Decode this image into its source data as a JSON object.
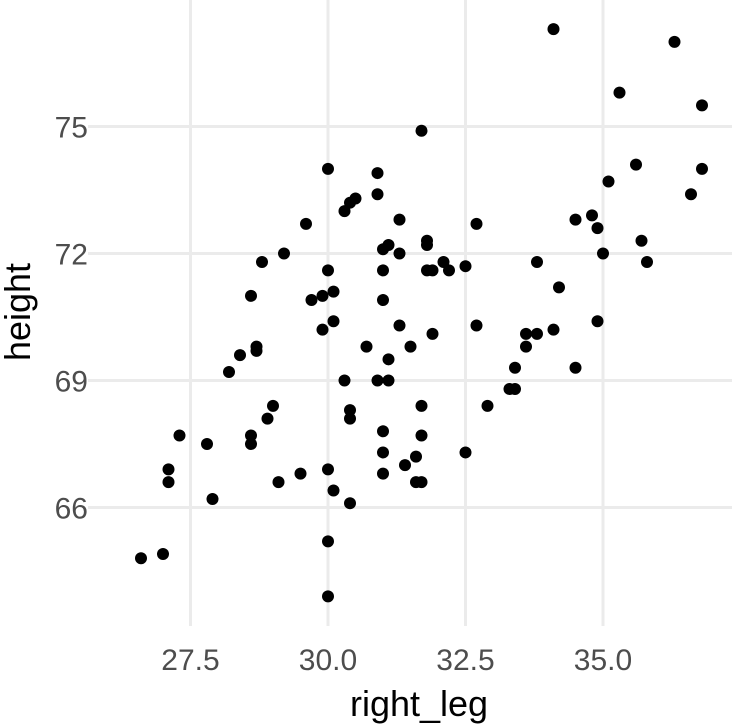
{
  "chart_data": {
    "type": "scatter",
    "title": "",
    "xlabel": "right_leg",
    "ylabel": "height",
    "xlim": [
      26.3,
      37.0
    ],
    "ylim": [
      63.0,
      78.5
    ],
    "x_ticks": [
      27.5,
      30.0,
      32.5,
      35.0
    ],
    "x_tick_labels": [
      "27.5",
      "30.0",
      "32.5",
      "35.0"
    ],
    "y_ticks": [
      66,
      69,
      72,
      75
    ],
    "y_tick_labels": [
      "66",
      "69",
      "72",
      "75"
    ],
    "grid": true,
    "point_color": "#000000",
    "points": [
      {
        "x": 26.6,
        "y": 64.8
      },
      {
        "x": 27.0,
        "y": 64.9
      },
      {
        "x": 27.1,
        "y": 66.9
      },
      {
        "x": 27.1,
        "y": 66.6
      },
      {
        "x": 27.3,
        "y": 67.7
      },
      {
        "x": 27.8,
        "y": 67.5
      },
      {
        "x": 27.9,
        "y": 66.2
      },
      {
        "x": 28.2,
        "y": 69.2
      },
      {
        "x": 28.4,
        "y": 69.6
      },
      {
        "x": 28.6,
        "y": 67.7
      },
      {
        "x": 28.6,
        "y": 67.5
      },
      {
        "x": 28.6,
        "y": 71.0
      },
      {
        "x": 28.7,
        "y": 69.8
      },
      {
        "x": 28.7,
        "y": 69.7
      },
      {
        "x": 28.8,
        "y": 71.8
      },
      {
        "x": 28.9,
        "y": 68.1
      },
      {
        "x": 29.0,
        "y": 68.4
      },
      {
        "x": 29.1,
        "y": 66.6
      },
      {
        "x": 29.2,
        "y": 72.0
      },
      {
        "x": 29.5,
        "y": 66.8
      },
      {
        "x": 29.6,
        "y": 72.7
      },
      {
        "x": 29.7,
        "y": 70.9
      },
      {
        "x": 29.9,
        "y": 71.0
      },
      {
        "x": 29.9,
        "y": 70.2
      },
      {
        "x": 30.0,
        "y": 71.6
      },
      {
        "x": 30.0,
        "y": 74.0
      },
      {
        "x": 30.0,
        "y": 66.9
      },
      {
        "x": 30.0,
        "y": 65.2
      },
      {
        "x": 30.0,
        "y": 63.9
      },
      {
        "x": 30.1,
        "y": 71.1
      },
      {
        "x": 30.1,
        "y": 70.4
      },
      {
        "x": 30.1,
        "y": 66.4
      },
      {
        "x": 30.3,
        "y": 73.0
      },
      {
        "x": 30.3,
        "y": 69.0
      },
      {
        "x": 30.4,
        "y": 73.2
      },
      {
        "x": 30.4,
        "y": 68.3
      },
      {
        "x": 30.4,
        "y": 68.1
      },
      {
        "x": 30.4,
        "y": 66.1
      },
      {
        "x": 30.5,
        "y": 73.3
      },
      {
        "x": 30.7,
        "y": 69.8
      },
      {
        "x": 30.9,
        "y": 73.9
      },
      {
        "x": 30.9,
        "y": 73.4
      },
      {
        "x": 30.9,
        "y": 69.0
      },
      {
        "x": 31.0,
        "y": 72.1
      },
      {
        "x": 31.0,
        "y": 71.6
      },
      {
        "x": 31.0,
        "y": 70.9
      },
      {
        "x": 31.0,
        "y": 67.8
      },
      {
        "x": 31.0,
        "y": 67.3
      },
      {
        "x": 31.0,
        "y": 66.8
      },
      {
        "x": 31.1,
        "y": 72.2
      },
      {
        "x": 31.1,
        "y": 69.5
      },
      {
        "x": 31.1,
        "y": 69.0
      },
      {
        "x": 31.3,
        "y": 72.8
      },
      {
        "x": 31.3,
        "y": 72.0
      },
      {
        "x": 31.3,
        "y": 70.3
      },
      {
        "x": 31.4,
        "y": 67.0
      },
      {
        "x": 31.5,
        "y": 69.8
      },
      {
        "x": 31.6,
        "y": 67.2
      },
      {
        "x": 31.6,
        "y": 66.6
      },
      {
        "x": 31.7,
        "y": 74.9
      },
      {
        "x": 31.7,
        "y": 68.4
      },
      {
        "x": 31.7,
        "y": 67.7
      },
      {
        "x": 31.7,
        "y": 66.6
      },
      {
        "x": 31.8,
        "y": 72.3
      },
      {
        "x": 31.8,
        "y": 72.2
      },
      {
        "x": 31.8,
        "y": 71.6
      },
      {
        "x": 31.9,
        "y": 70.1
      },
      {
        "x": 31.9,
        "y": 71.6
      },
      {
        "x": 32.1,
        "y": 71.8
      },
      {
        "x": 32.2,
        "y": 71.6
      },
      {
        "x": 32.5,
        "y": 71.7
      },
      {
        "x": 32.5,
        "y": 67.3
      },
      {
        "x": 32.7,
        "y": 72.7
      },
      {
        "x": 32.7,
        "y": 70.3
      },
      {
        "x": 32.9,
        "y": 68.4
      },
      {
        "x": 33.3,
        "y": 68.8
      },
      {
        "x": 33.4,
        "y": 68.8
      },
      {
        "x": 33.4,
        "y": 69.3
      },
      {
        "x": 33.6,
        "y": 70.1
      },
      {
        "x": 33.6,
        "y": 69.8
      },
      {
        "x": 33.8,
        "y": 71.8
      },
      {
        "x": 33.8,
        "y": 70.1
      },
      {
        "x": 34.1,
        "y": 70.2
      },
      {
        "x": 34.1,
        "y": 77.3
      },
      {
        "x": 34.2,
        "y": 71.2
      },
      {
        "x": 34.5,
        "y": 72.8
      },
      {
        "x": 34.5,
        "y": 69.3
      },
      {
        "x": 34.8,
        "y": 72.9
      },
      {
        "x": 34.9,
        "y": 72.6
      },
      {
        "x": 34.9,
        "y": 70.4
      },
      {
        "x": 35.0,
        "y": 72.0
      },
      {
        "x": 35.1,
        "y": 73.7
      },
      {
        "x": 35.3,
        "y": 75.8
      },
      {
        "x": 35.6,
        "y": 74.1
      },
      {
        "x": 35.7,
        "y": 72.3
      },
      {
        "x": 35.8,
        "y": 71.8
      },
      {
        "x": 36.3,
        "y": 77.0
      },
      {
        "x": 36.6,
        "y": 73.4
      },
      {
        "x": 36.8,
        "y": 75.5
      },
      {
        "x": 36.8,
        "y": 74.0
      }
    ]
  }
}
